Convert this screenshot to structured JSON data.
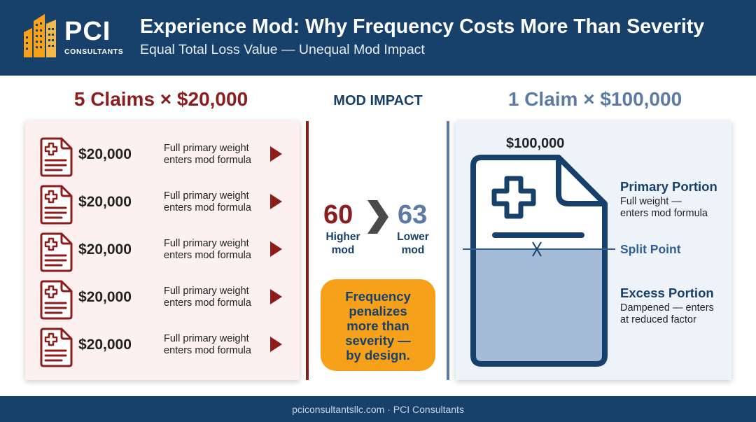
{
  "header": {
    "logo_text": "PCI",
    "logo_sub": "CONSULTANTS",
    "title": "Experience Mod: Why Frequency Costs More Than Severity",
    "subtitle": "Equal Total Loss Value — Unequal Mod Impact"
  },
  "left": {
    "heading": "5 Claims × $20,000",
    "claims": [
      {
        "amount": "$20,000",
        "desc_line1": "Full primary weight",
        "desc_line2": "enters mod formula"
      },
      {
        "amount": "$20,000",
        "desc_line1": "Full primary weight",
        "desc_line2": "enters mod formula"
      },
      {
        "amount": "$20,000",
        "desc_line1": "Full primary weight",
        "desc_line2": "enters mod formula"
      },
      {
        "amount": "$20,000",
        "desc_line1": "Full primary weight",
        "desc_line2": "enters mod formula"
      },
      {
        "amount": "$20,000",
        "desc_line1": "Full primary weight",
        "desc_line2": "enters mod formula"
      }
    ]
  },
  "middle": {
    "heading": "MOD IMPACT",
    "left_value": "60",
    "left_caption_line1": "Higher",
    "left_caption_line2": "mod",
    "right_value": "63",
    "right_caption_line1": "Lower",
    "right_caption_line2": "mod",
    "callout_lines": [
      "Frequency",
      "penalizes",
      "more than",
      "severity —",
      "by design."
    ]
  },
  "right": {
    "heading": "1 Claim × $100,000",
    "amount": "$100,000",
    "primary_title": "Primary Portion",
    "primary_desc_line1": "Full weight —",
    "primary_desc_line2": "enters mod formula",
    "split_label": "Split Point",
    "excess_title": "Excess Portion",
    "excess_desc_line1": "Dampened — enters",
    "excess_desc_line2": "at reduced factor"
  },
  "footer": {
    "text": "pciconsultantsllc.com · PCI Consultants"
  },
  "colors": {
    "navy": "#17406b",
    "maroon": "#8c1d1d",
    "steel_blue": "#5b7ba6",
    "orange": "#f7a11a"
  }
}
